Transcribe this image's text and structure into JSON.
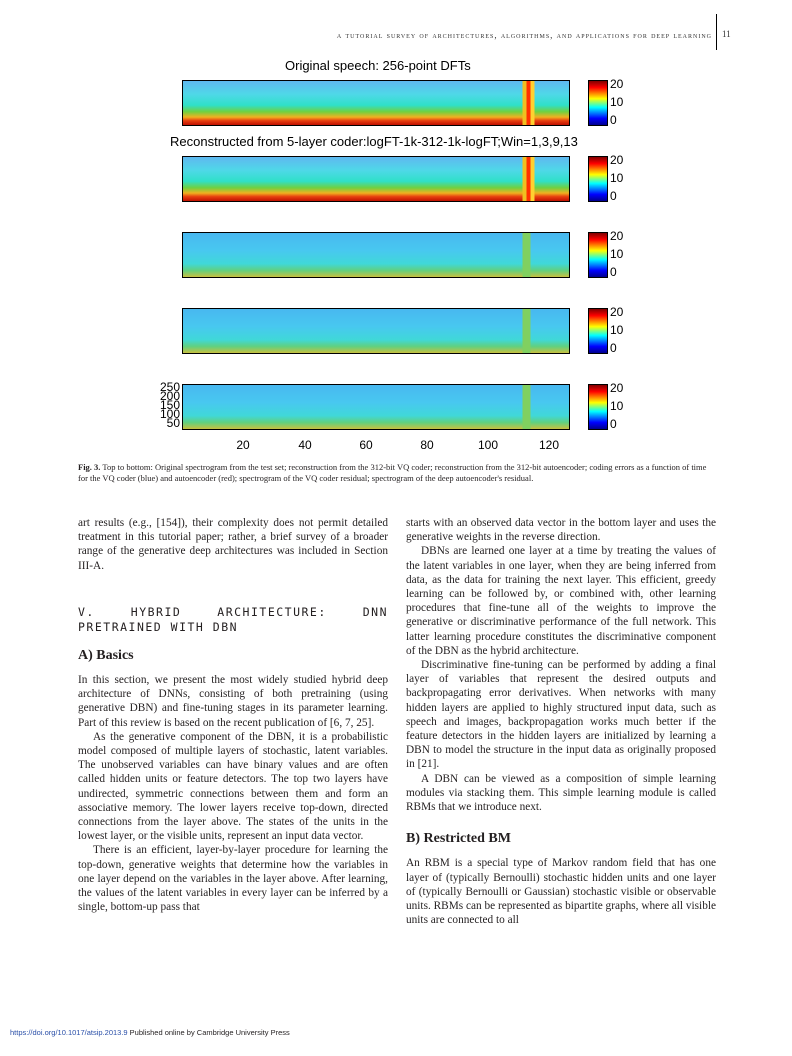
{
  "header": {
    "running_title": "A TUTORIAL SURVEY OF ARCHITECTURES, ALGORITHMS, AND APPLICATIONS FOR DEEP LEARNING",
    "page_number": "11"
  },
  "figure": {
    "title_top": "Original speech: 256-point DFTs",
    "title_second": "Reconstructed from 5-layer coder:logFT-1k-312-1k-logFT;Win=1,3,9,13",
    "colorbar_labels": [
      "20",
      "10",
      "0"
    ],
    "x_ticks": [
      "20",
      "40",
      "60",
      "80",
      "100",
      "120"
    ],
    "y_ticks": [
      "250",
      "200",
      "150",
      "100",
      "50"
    ],
    "caption_label": "Fig. 3.",
    "caption_text": "Top to bottom: Original spectrogram from the test set; reconstruction from the 312-bit VQ coder; reconstruction from the 312-bit autoencoder; coding errors as a function of time for the VQ coder (blue) and autoencoder (red); spectrogram of the VQ coder residual; spectrogram of the deep autoencoder's residual."
  },
  "left_column": {
    "p1": "art results (e.g., [154]), their complexity does not permit detailed treatment in this tutorial paper; rather, a brief survey of a broader range of the generative deep architectures was included in Section III-A.",
    "section_title": "V. HYBRID ARCHITECTURE: DNN PRETRAINED WITH DBN",
    "subsection_title": "A) Basics",
    "p2": "In this section, we present the most widely studied hybrid deep architecture of DNNs, consisting of both pretraining (using generative DBN) and fine-tuning stages in its parameter learning. Part of this review is based on the recent publication of [6, 7, 25].",
    "p3": "As the generative component of the DBN, it is a probabilistic model composed of multiple layers of stochastic, latent variables. The unobserved variables can have binary values and are often called hidden units or feature detectors. The top two layers have undirected, symmetric connections between them and form an associative memory. The lower layers receive top-down, directed connections from the layer above. The states of the units in the lowest layer, or the visible units, represent an input data vector.",
    "p4": "There is an efficient, layer-by-layer procedure for learning the top-down, generative weights that determine how the variables in one layer depend on the variables in the layer above. After learning, the values of the latent variables in every layer can be inferred by a single, bottom-up pass that"
  },
  "right_column": {
    "p1": "starts with an observed data vector in the bottom layer and uses the generative weights in the reverse direction.",
    "p2": "DBNs are learned one layer at a time by treating the values of the latent variables in one layer, when they are being inferred from data, as the data for training the next layer. This efficient, greedy learning can be followed by, or combined with, other learning procedures that fine-tune all of the weights to improve the generative or discriminative performance of the full network. This latter learning procedure constitutes the discriminative component of the DBN as the hybrid architecture.",
    "p3": "Discriminative fine-tuning can be performed by adding a final layer of variables that represent the desired outputs and backpropagating error derivatives. When networks with many hidden layers are applied to highly structured input data, such as speech and images, backpropagation works much better if the feature detectors in the hidden layers are initialized by learning a DBN to model the structure in the input data as originally proposed in [21].",
    "p4": "A DBN can be viewed as a composition of simple learning modules via stacking them. This simple learning module is called RBMs that we introduce next.",
    "subsection_title": "B) Restricted BM",
    "p5": "An RBM is a special type of Markov random field that has one layer of (typically Bernoulli) stochastic hidden units and one layer of (typically Bernoulli or Gaussian) stochastic visible or observable units. RBMs can be represented as bipartite graphs, where all visible units are connected to all"
  },
  "footer": {
    "doi": "https://doi.org/10.1017/atsip.2013.9",
    "publisher_note": " Published online by Cambridge University Press"
  }
}
